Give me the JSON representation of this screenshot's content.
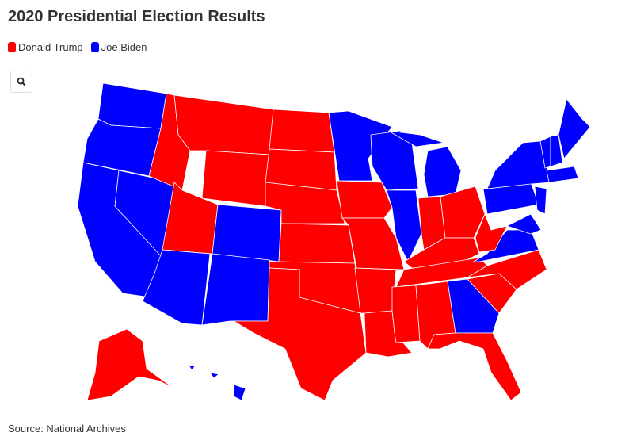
{
  "title": "2020 Presidential Election Results",
  "legend": [
    {
      "name": "Donald Trump",
      "color": "#ff0000"
    },
    {
      "name": "Joe Biden",
      "color": "#0000ff"
    }
  ],
  "source": "Source: National Archives"
}
